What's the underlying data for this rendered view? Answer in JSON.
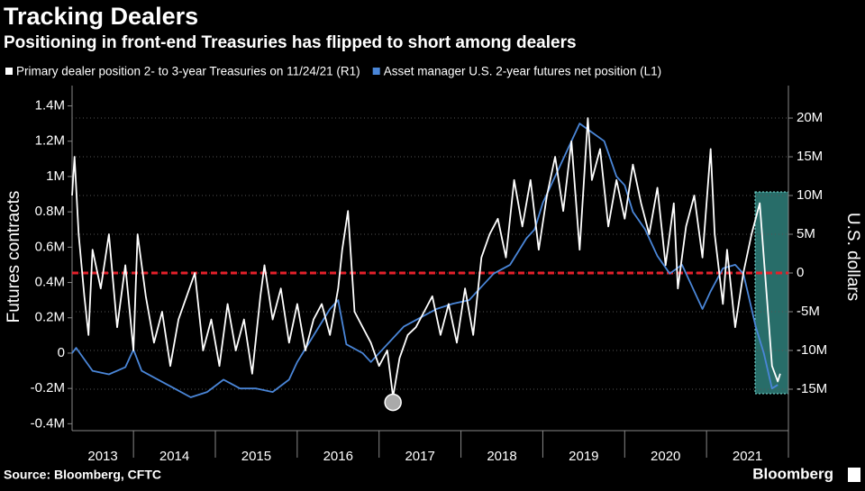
{
  "chart_data": {
    "type": "line",
    "title": "Tracking Dealers",
    "subtitle": "Positioning in front-end Treasuries has flipped to short among dealers",
    "y_label": "Futures contracts",
    "y2_label": "U.S. dollars",
    "source": "Source: Bloomberg, CFTC",
    "brand": "Bloomberg",
    "xlim": [
      2013.25,
      2022.0
    ],
    "xticks": [
      {
        "value": 2013,
        "label": "2013"
      },
      {
        "value": 2014,
        "label": "2014"
      },
      {
        "value": 2015,
        "label": "2015"
      },
      {
        "value": 2016,
        "label": "2016"
      },
      {
        "value": 2017,
        "label": "2017"
      },
      {
        "value": 2018,
        "label": "2018"
      },
      {
        "value": 2019,
        "label": "2019"
      },
      {
        "value": 2020,
        "label": "2020"
      },
      {
        "value": 2021,
        "label": "2021"
      }
    ],
    "ylim": [
      -439000,
      1515000
    ],
    "yticks": [
      {
        "value": -400000,
        "label": "-0.4M"
      },
      {
        "value": -200000,
        "label": "-0.2M"
      },
      0,
      {
        "value": 200000,
        "label": "0.2M"
      },
      {
        "value": 400000,
        "label": "0.4M"
      },
      {
        "value": 600000,
        "label": "0.6M"
      },
      {
        "value": 800000,
        "label": "0.8M"
      },
      {
        "value": 1000000,
        "label": "1M"
      },
      {
        "value": 1200000,
        "label": "1.2M"
      },
      {
        "value": 1400000,
        "label": "1.4M"
      }
    ],
    "y2lim": [
      -20350000,
      24190000
    ],
    "y2ticks": [
      {
        "value": -15000000,
        "label": "-15M"
      },
      {
        "value": -10000000,
        "label": "-10M"
      },
      {
        "value": -5000000,
        "label": "-5M"
      },
      0,
      {
        "value": 5000000,
        "label": "5M"
      },
      {
        "value": 10000000,
        "label": "10M"
      },
      {
        "value": 15000000,
        "label": "15M"
      },
      {
        "value": 20000000,
        "label": "20M"
      }
    ],
    "grid": true,
    "zero_line": {
      "axis": "y2",
      "value": 0,
      "color": "#e3202a"
    },
    "series": [
      {
        "name": "Primary dealer position 2- to 3-year Treasuries on 11/24/21 (R1)",
        "color": "#ffffff",
        "axis": "y2",
        "x": [
          2013.25,
          2013.28,
          2013.33,
          2013.4,
          2013.45,
          2013.5,
          2013.6,
          2013.7,
          2013.8,
          2013.9,
          2014.0,
          2014.05,
          2014.15,
          2014.25,
          2014.35,
          2014.45,
          2014.55,
          2014.65,
          2014.75,
          2014.85,
          2014.95,
          2015.05,
          2015.15,
          2015.25,
          2015.35,
          2015.45,
          2015.55,
          2015.6,
          2015.7,
          2015.8,
          2015.9,
          2016.0,
          2016.1,
          2016.2,
          2016.3,
          2016.4,
          2016.5,
          2016.55,
          2016.62,
          2016.7,
          2016.8,
          2016.9,
          2017.0,
          2017.1,
          2017.17,
          2017.25,
          2017.35,
          2017.45,
          2017.55,
          2017.65,
          2017.75,
          2017.85,
          2017.95,
          2018.05,
          2018.15,
          2018.25,
          2018.35,
          2018.45,
          2018.55,
          2018.65,
          2018.75,
          2018.85,
          2018.95,
          2019.05,
          2019.15,
          2019.25,
          2019.35,
          2019.45,
          2019.55,
          2019.6,
          2019.7,
          2019.8,
          2019.9,
          2020.0,
          2020.1,
          2020.2,
          2020.3,
          2020.4,
          2020.5,
          2020.6,
          2020.65,
          2020.75,
          2020.85,
          2020.95,
          2021.05,
          2021.1,
          2021.2,
          2021.25,
          2021.35,
          2021.45,
          2021.55,
          2021.65,
          2021.7,
          2021.75,
          2021.8,
          2021.87,
          2021.9
        ],
        "values": [
          10000000,
          15000000,
          5000000,
          -3000000,
          -8000000,
          3000000,
          -2000000,
          5000000,
          -7000000,
          1000000,
          -10000000,
          5000000,
          -3000000,
          -9000000,
          -5000000,
          -12000000,
          -6000000,
          -3000000,
          0,
          -10000000,
          -6000000,
          -12000000,
          -4000000,
          -10000000,
          -6000000,
          -13000000,
          -3000000,
          1000000,
          -6000000,
          -2000000,
          -9000000,
          -4000000,
          -10000000,
          -6000000,
          -4000000,
          -8000000,
          -2000000,
          3000000,
          8000000,
          -5000000,
          -7000000,
          -9000000,
          -12000000,
          -10000000,
          -16000000,
          -11000000,
          -8000000,
          -7000000,
          -5000000,
          -3000000,
          -8000000,
          -4000000,
          -9000000,
          -2000000,
          -8000000,
          2000000,
          5000000,
          7000000,
          2000000,
          12000000,
          6000000,
          12000000,
          3000000,
          10000000,
          15000000,
          8000000,
          17000000,
          3000000,
          20000000,
          12000000,
          16000000,
          6000000,
          12000000,
          7000000,
          14000000,
          9000000,
          5000000,
          11000000,
          1000000,
          9000000,
          -2000000,
          6000000,
          10000000,
          2000000,
          16000000,
          5000000,
          -4000000,
          3000000,
          -7000000,
          0,
          5000000,
          9000000,
          2000000,
          -5000000,
          -12000000,
          -14000000,
          -13000000
        ]
      },
      {
        "name": "Asset manager U.S. 2-year futures net position (L1)",
        "color": "#4a86d8",
        "axis": "y",
        "x": [
          2013.25,
          2013.3,
          2013.5,
          2013.7,
          2013.9,
          2014.0,
          2014.1,
          2014.3,
          2014.5,
          2014.7,
          2014.9,
          2015.1,
          2015.3,
          2015.5,
          2015.7,
          2015.9,
          2016.0,
          2016.2,
          2016.4,
          2016.5,
          2016.6,
          2016.8,
          2016.9,
          2017.1,
          2017.3,
          2017.5,
          2017.7,
          2017.9,
          2018.1,
          2018.2,
          2018.4,
          2018.6,
          2018.8,
          2018.9,
          2019.0,
          2019.1,
          2019.2,
          2019.35,
          2019.45,
          2019.6,
          2019.75,
          2019.9,
          2020.0,
          2020.1,
          2020.25,
          2020.4,
          2020.55,
          2020.7,
          2020.8,
          2020.95,
          2021.05,
          2021.2,
          2021.35,
          2021.45,
          2021.5,
          2021.6,
          2021.7,
          2021.8,
          2021.87
        ],
        "values": [
          0,
          30000,
          -100000,
          -120000,
          -80000,
          20000,
          -100000,
          -150000,
          -200000,
          -250000,
          -220000,
          -150000,
          -200000,
          -200000,
          -220000,
          -150000,
          -50000,
          100000,
          250000,
          300000,
          50000,
          0,
          -50000,
          50000,
          150000,
          200000,
          250000,
          280000,
          300000,
          350000,
          450000,
          500000,
          650000,
          700000,
          850000,
          950000,
          1050000,
          1200000,
          1300000,
          1250000,
          1200000,
          1000000,
          950000,
          800000,
          700000,
          550000,
          450000,
          500000,
          400000,
          250000,
          350000,
          480000,
          500000,
          450000,
          350000,
          150000,
          0,
          -200000,
          -180000
        ]
      }
    ]
  }
}
